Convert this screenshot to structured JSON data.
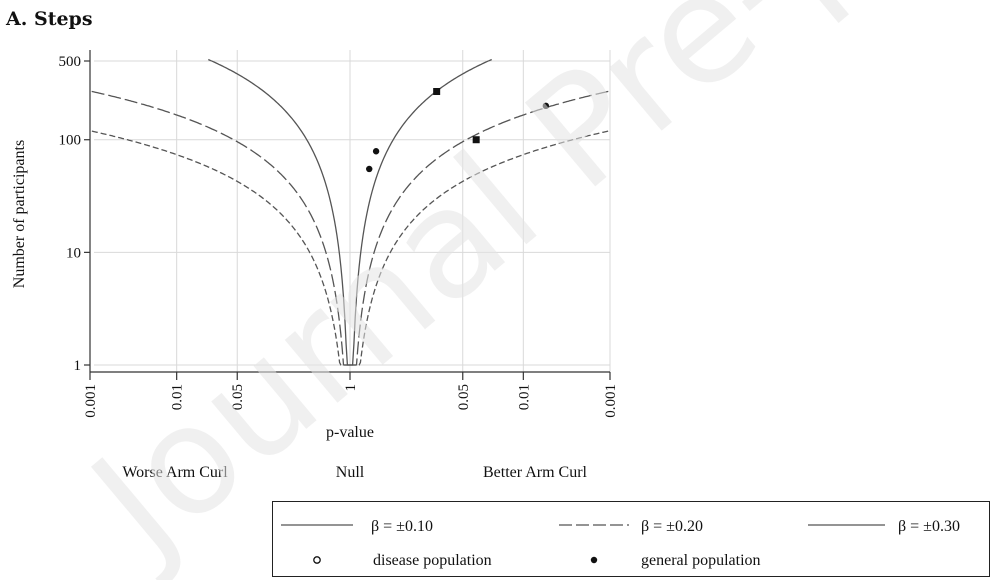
{
  "panel_title": "A. Steps",
  "watermark": "Journal Pre-proof",
  "colors": {
    "axis": "#333333",
    "grid": "#d9d9d9",
    "curve": "#555555",
    "marker": "#111111"
  },
  "chart_data": {
    "type": "scatter",
    "title": "A. Steps",
    "xlabel": "p-value",
    "ylabel": "Number of participants",
    "x_scale": "two-sided log p-value (symmetric around null)",
    "y_scale": "log",
    "ylim": [
      1,
      500
    ],
    "x_ticks": [
      {
        "label": "0.001",
        "side": "negative",
        "p": 0.001
      },
      {
        "label": "0.01",
        "side": "negative",
        "p": 0.01
      },
      {
        "label": "0.05",
        "side": "negative",
        "p": 0.05
      },
      {
        "label": "1",
        "side": "null",
        "p": 1
      },
      {
        "label": "0.05",
        "side": "positive",
        "p": 0.05
      },
      {
        "label": "0.01",
        "side": "positive",
        "p": 0.01
      },
      {
        "label": "0.001",
        "side": "positive",
        "p": 0.001
      }
    ],
    "y_ticks": [
      "1",
      "10",
      "100",
      "500"
    ],
    "region_labels": [
      "Worse Arm Curl",
      "Null",
      "Better Arm Curl"
    ],
    "grid": true,
    "legend_position": "bottom",
    "contours": [
      {
        "name": "β = ±0.10",
        "style": "solid",
        "beta": 0.1
      },
      {
        "name": "β = ±0.20",
        "style": "long-dash",
        "beta": 0.2
      },
      {
        "name": "β = ±0.30",
        "style": "short-dash",
        "beta": 0.3
      }
    ],
    "legend_order": [
      "β = ±0.10",
      "β = ±0.20",
      "β = ±0.30"
    ],
    "marker_legend": [
      {
        "name": "disease population",
        "marker": "hollow-circle"
      },
      {
        "name": "general population",
        "marker": "filled-circle"
      }
    ],
    "points": [
      {
        "group": "general population",
        "side": "positive",
        "p": 0.6,
        "n": 55,
        "marker": "filled-circle"
      },
      {
        "group": "general population",
        "side": "positive",
        "p": 0.5,
        "n": 79,
        "marker": "filled-circle"
      },
      {
        "group": "general population",
        "side": "positive",
        "p": 0.1,
        "n": 268,
        "marker": "filled-square"
      },
      {
        "group": "general population",
        "side": "positive",
        "p": 0.035,
        "n": 100,
        "marker": "filled-square"
      },
      {
        "group": "general population",
        "side": "positive",
        "p": 0.0055,
        "n": 200,
        "marker": "filled-circle"
      }
    ]
  }
}
